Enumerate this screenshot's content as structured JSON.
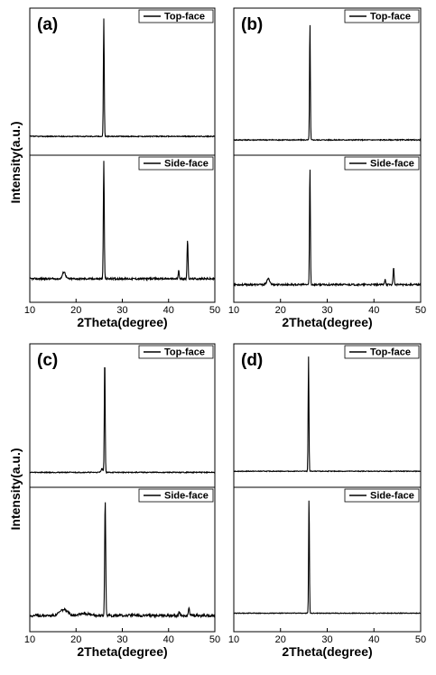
{
  "figure": {
    "ylabel": "Intensity(a.u.)"
  },
  "chart_data": [
    {
      "panel": "(a)",
      "type": "line",
      "xlabel": "2Theta(degree)",
      "ylabel": "Intensity(a.u.)",
      "xlim": [
        10,
        50
      ],
      "xticks": [
        10,
        20,
        30,
        40,
        50
      ],
      "grid": false,
      "legend_position": "top-right",
      "series": [
        {
          "name": "Top-face",
          "baseline": 0.06,
          "noise": 0.004,
          "peaks": [
            {
              "x": 26.0,
              "height": 1.0,
              "width": 0.13
            }
          ]
        },
        {
          "name": "Side-face",
          "baseline": 0.1,
          "noise": 0.008,
          "peaks": [
            {
              "x": 17.4,
              "height": 0.06,
              "width": 0.45
            },
            {
              "x": 26.0,
              "height": 1.0,
              "width": 0.14
            },
            {
              "x": 42.2,
              "height": 0.07,
              "width": 0.15
            },
            {
              "x": 44.1,
              "height": 0.33,
              "width": 0.15
            }
          ]
        }
      ]
    },
    {
      "panel": "(b)",
      "type": "line",
      "xlabel": "2Theta(degree)",
      "ylabel": "",
      "xlim": [
        10,
        50
      ],
      "xticks": [
        10,
        20,
        30,
        40,
        50
      ],
      "grid": false,
      "legend_position": "top-right",
      "series": [
        {
          "name": "Top-face",
          "baseline": 0.03,
          "noise": 0.004,
          "peaks": [
            {
              "x": 26.3,
              "height": 1.0,
              "width": 0.12
            }
          ]
        },
        {
          "name": "Side-face",
          "baseline": 0.05,
          "noise": 0.007,
          "peaks": [
            {
              "x": 17.4,
              "height": 0.05,
              "width": 0.45
            },
            {
              "x": 26.3,
              "height": 1.0,
              "width": 0.13
            },
            {
              "x": 42.4,
              "height": 0.05,
              "width": 0.15
            },
            {
              "x": 44.2,
              "height": 0.15,
              "width": 0.15
            }
          ]
        }
      ]
    },
    {
      "panel": "(c)",
      "type": "line",
      "xlabel": "2Theta(degree)",
      "ylabel": "Intensity(a.u.)",
      "xlim": [
        10,
        50
      ],
      "xticks": [
        10,
        20,
        30,
        40,
        50
      ],
      "grid": false,
      "legend_position": "top-right",
      "series": [
        {
          "name": "Top-face",
          "baseline": 0.03,
          "noise": 0.004,
          "peaks": [
            {
              "x": 26.2,
              "height": 1.0,
              "width": 0.13
            },
            {
              "x": 25.6,
              "height": 0.03,
              "width": 0.3
            }
          ]
        },
        {
          "name": "Side-face",
          "baseline": 0.04,
          "noise": 0.012,
          "peaks": [
            {
              "x": 17.3,
              "height": 0.05,
              "width": 1.2
            },
            {
              "x": 21.5,
              "height": 0.02,
              "width": 1.5
            },
            {
              "x": 26.3,
              "height": 1.0,
              "width": 0.16
            },
            {
              "x": 42.3,
              "height": 0.03,
              "width": 0.2
            },
            {
              "x": 44.4,
              "height": 0.07,
              "width": 0.2
            }
          ]
        }
      ]
    },
    {
      "panel": "(d)",
      "type": "line",
      "xlabel": "2Theta(degree)",
      "ylabel": "",
      "xlim": [
        10,
        50
      ],
      "xticks": [
        10,
        20,
        30,
        40,
        50
      ],
      "grid": false,
      "legend_position": "top-right",
      "series": [
        {
          "name": "Top-face",
          "baseline": 0.04,
          "noise": 0.003,
          "peaks": [
            {
              "x": 26.0,
              "height": 1.0,
              "width": 0.12
            }
          ]
        },
        {
          "name": "Side-face",
          "baseline": 0.06,
          "noise": 0.003,
          "peaks": [
            {
              "x": 26.1,
              "height": 1.0,
              "width": 0.12
            }
          ]
        }
      ]
    }
  ]
}
